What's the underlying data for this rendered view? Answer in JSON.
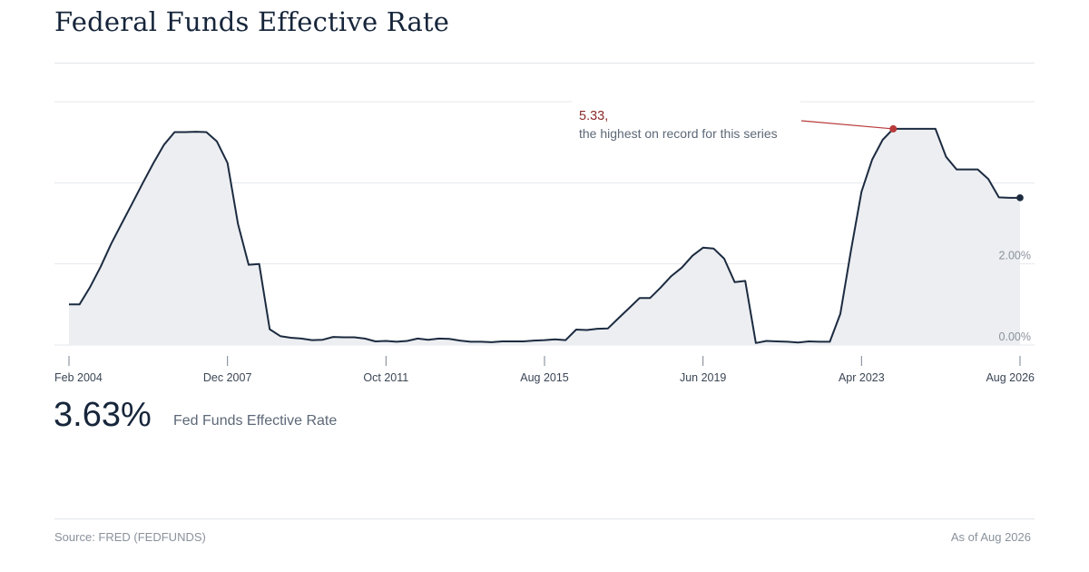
{
  "page": {
    "title": "Federal Funds Effective Rate",
    "headline_value": "3.63%",
    "headline_label": "Fed Funds Effective Rate",
    "source": "Source: FRED (FEDFUNDS)",
    "as_of": "As of Aug 2026"
  },
  "colors": {
    "line": "#1c2b40",
    "area": "#eceef1",
    "grid": "#e4e7eb",
    "highlight": "#b83a3a",
    "annotation_value": "#8b2b2b"
  },
  "chart_data": {
    "type": "area",
    "title": "Federal Funds Effective Rate",
    "xlabel": "",
    "ylabel": "",
    "x_ticks": [
      "Feb 2004",
      "Dec 2007",
      "Oct 2011",
      "Aug 2015",
      "Jun 2019",
      "Apr 2023",
      "Aug 2026"
    ],
    "y_ticks": [
      "0.00%",
      "2.00%"
    ],
    "ylim": [
      0,
      6
    ],
    "grid": true,
    "series": [
      {
        "points": [
          [
            "2004-02",
            1.0
          ],
          [
            "2004-05",
            1.0
          ],
          [
            "2004-08",
            1.43
          ],
          [
            "2004-11",
            1.93
          ],
          [
            "2005-02",
            2.5
          ],
          [
            "2005-05",
            3.0
          ],
          [
            "2005-08",
            3.5
          ],
          [
            "2005-11",
            4.0
          ],
          [
            "2006-02",
            4.49
          ],
          [
            "2006-05",
            4.94
          ],
          [
            "2006-08",
            5.25
          ],
          [
            "2006-11",
            5.25
          ],
          [
            "2007-02",
            5.26
          ],
          [
            "2007-05",
            5.25
          ],
          [
            "2007-08",
            5.02
          ],
          [
            "2007-11",
            4.49
          ],
          [
            "2008-02",
            2.98
          ],
          [
            "2008-05",
            1.98
          ],
          [
            "2008-08",
            2.0
          ],
          [
            "2008-11",
            0.39
          ],
          [
            "2009-02",
            0.22
          ],
          [
            "2009-05",
            0.18
          ],
          [
            "2009-08",
            0.16
          ],
          [
            "2009-11",
            0.12
          ],
          [
            "2010-02",
            0.13
          ],
          [
            "2010-05",
            0.2
          ],
          [
            "2010-08",
            0.19
          ],
          [
            "2010-11",
            0.19
          ],
          [
            "2011-02",
            0.16
          ],
          [
            "2011-05",
            0.09
          ],
          [
            "2011-08",
            0.1
          ],
          [
            "2011-11",
            0.08
          ],
          [
            "2012-02",
            0.1
          ],
          [
            "2012-05",
            0.16
          ],
          [
            "2012-08",
            0.13
          ],
          [
            "2012-11",
            0.16
          ],
          [
            "2013-02",
            0.15
          ],
          [
            "2013-05",
            0.11
          ],
          [
            "2013-08",
            0.08
          ],
          [
            "2013-11",
            0.08
          ],
          [
            "2014-02",
            0.07
          ],
          [
            "2014-05",
            0.09
          ],
          [
            "2014-08",
            0.09
          ],
          [
            "2014-11",
            0.09
          ],
          [
            "2015-02",
            0.11
          ],
          [
            "2015-05",
            0.12
          ],
          [
            "2015-08",
            0.14
          ],
          [
            "2015-11",
            0.12
          ],
          [
            "2016-02",
            0.38
          ],
          [
            "2016-05",
            0.37
          ],
          [
            "2016-08",
            0.4
          ],
          [
            "2016-11",
            0.41
          ],
          [
            "2017-02",
            0.66
          ],
          [
            "2017-05",
            0.91
          ],
          [
            "2017-08",
            1.16
          ],
          [
            "2017-11",
            1.16
          ],
          [
            "2018-02",
            1.42
          ],
          [
            "2018-05",
            1.7
          ],
          [
            "2018-08",
            1.91
          ],
          [
            "2018-11",
            2.2
          ],
          [
            "2019-02",
            2.4
          ],
          [
            "2019-05",
            2.38
          ],
          [
            "2019-08",
            2.13
          ],
          [
            "2019-11",
            1.55
          ],
          [
            "2020-02",
            1.58
          ],
          [
            "2020-05",
            0.05
          ],
          [
            "2020-08",
            0.1
          ],
          [
            "2020-11",
            0.09
          ],
          [
            "2021-02",
            0.08
          ],
          [
            "2021-05",
            0.06
          ],
          [
            "2021-08",
            0.09
          ],
          [
            "2021-11",
            0.08
          ],
          [
            "2022-02",
            0.08
          ],
          [
            "2022-05",
            0.77
          ],
          [
            "2022-08",
            2.33
          ],
          [
            "2022-11",
            3.78
          ],
          [
            "2023-02",
            4.57
          ],
          [
            "2023-05",
            5.06
          ],
          [
            "2023-08",
            5.33
          ],
          [
            "2023-11",
            5.33
          ],
          [
            "2024-02",
            5.33
          ],
          [
            "2024-05",
            5.33
          ],
          [
            "2024-08",
            5.33
          ],
          [
            "2024-11",
            4.64
          ],
          [
            "2025-02",
            4.33
          ],
          [
            "2025-05",
            4.33
          ],
          [
            "2025-08",
            4.33
          ],
          [
            "2025-11",
            4.09
          ],
          [
            "2026-02",
            3.64
          ],
          [
            "2026-05",
            3.63
          ],
          [
            "2026-08",
            3.63
          ]
        ]
      }
    ],
    "annotation": {
      "date": "2023-08",
      "value": 5.33,
      "value_text": "5.33,",
      "text": "the highest on record for this series"
    },
    "last_point": {
      "date": "2026-08",
      "value": 3.63
    }
  }
}
